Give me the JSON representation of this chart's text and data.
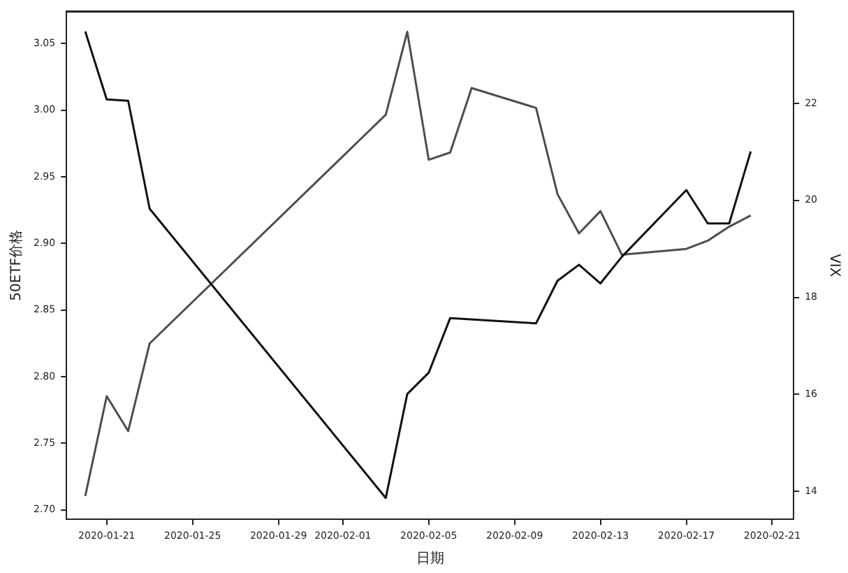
{
  "chart_data": {
    "type": "line",
    "xlabel": "日期",
    "ylabel": "50ETF价格",
    "y2label": "VIX",
    "xlim": [
      "2020-01-19T03:00",
      "2020-02-22"
    ],
    "xticks": [
      "2020-01-21",
      "2020-01-25",
      "2020-01-29",
      "2020-02-01",
      "2020-02-05",
      "2020-02-09",
      "2020-02-13",
      "2020-02-17",
      "2020-02-21"
    ],
    "ylim": [
      2.693,
      3.074
    ],
    "yticks": [
      {
        "value": 2.7,
        "label": "2.70"
      },
      {
        "value": 2.75,
        "label": "2.75"
      },
      {
        "value": 2.8,
        "label": "2.80"
      },
      {
        "value": 2.85,
        "label": "2.85"
      },
      {
        "value": 2.9,
        "label": "2.90"
      },
      {
        "value": 2.95,
        "label": "2.95"
      },
      {
        "value": 3.0,
        "label": "3.00"
      },
      {
        "value": 3.05,
        "label": "3.05"
      }
    ],
    "y2lim": [
      13.42,
      23.9
    ],
    "y2ticks": [
      14,
      16,
      18,
      20,
      22
    ],
    "grid": false,
    "legend": false,
    "marker": "none",
    "line_style": "solid",
    "series": [
      {
        "color": "#111111",
        "x": [
          "2020-01-20",
          "2020-01-21",
          "2020-01-22",
          "2020-01-23",
          "2020-02-03",
          "2020-02-04",
          "2020-02-05",
          "2020-02-06",
          "2020-02-10",
          "2020-02-11",
          "2020-02-12",
          "2020-02-13",
          "2020-02-14",
          "2020-02-17",
          "2020-02-18",
          "2020-02-19",
          "2020-02-20"
        ],
        "values": [
          3.059,
          3.008,
          3.007,
          2.926,
          2.709,
          2.787,
          2.803,
          2.844,
          2.84,
          2.872,
          2.884,
          2.87,
          2.89,
          2.94,
          2.915,
          2.915,
          2.969
        ]
      },
      {
        "color": "#4d4d4d",
        "axis": "y2",
        "x": [
          "2020-01-20",
          "2020-01-21",
          "2020-01-22",
          "2020-01-23",
          "2020-02-03",
          "2020-02-04",
          "2020-02-05",
          "2020-02-06",
          "2020-02-07",
          "2020-02-10",
          "2020-02-11",
          "2020-02-12",
          "2020-02-13",
          "2020-02-14",
          "2020-02-17",
          "2020-02-18",
          "2020-02-19",
          "2020-02-20"
        ],
        "values": [
          13.9,
          15.96,
          15.24,
          17.05,
          21.77,
          23.48,
          20.84,
          20.99,
          22.32,
          21.91,
          20.13,
          19.32,
          19.78,
          18.88,
          19.0,
          19.17,
          19.46,
          19.69
        ]
      }
    ]
  }
}
